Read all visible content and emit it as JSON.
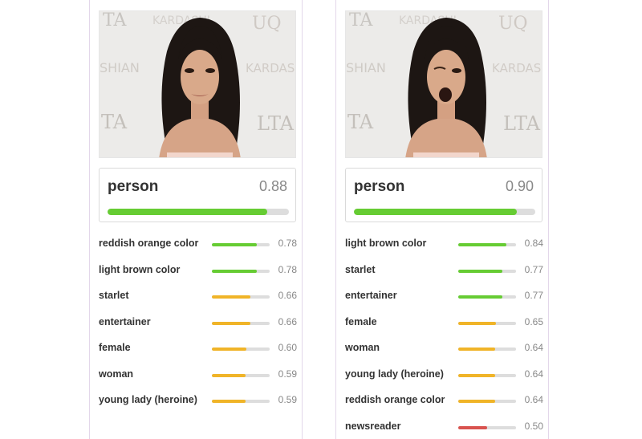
{
  "colors": {
    "high": "#66cc33",
    "mid": "#f0b428",
    "low": "#d9534f",
    "track": "#dddddd"
  },
  "panels": [
    {
      "top": {
        "label": "person",
        "score": "0.88",
        "value": 0.88
      },
      "concepts": [
        {
          "label": "reddish orange color",
          "score": "0.78",
          "value": 0.78,
          "level": "high"
        },
        {
          "label": "light brown color",
          "score": "0.78",
          "value": 0.78,
          "level": "high"
        },
        {
          "label": "starlet",
          "score": "0.66",
          "value": 0.66,
          "level": "mid"
        },
        {
          "label": "entertainer",
          "score": "0.66",
          "value": 0.66,
          "level": "mid"
        },
        {
          "label": "female",
          "score": "0.60",
          "value": 0.6,
          "level": "mid"
        },
        {
          "label": "woman",
          "score": "0.59",
          "value": 0.59,
          "level": "mid"
        },
        {
          "label": "young lady (heroine)",
          "score": "0.59",
          "value": 0.59,
          "level": "mid"
        }
      ]
    },
    {
      "top": {
        "label": "person",
        "score": "0.90",
        "value": 0.9
      },
      "concepts": [
        {
          "label": "light brown color",
          "score": "0.84",
          "value": 0.84,
          "level": "high"
        },
        {
          "label": "starlet",
          "score": "0.77",
          "value": 0.77,
          "level": "high"
        },
        {
          "label": "entertainer",
          "score": "0.77",
          "value": 0.77,
          "level": "high"
        },
        {
          "label": "female",
          "score": "0.65",
          "value": 0.65,
          "level": "mid"
        },
        {
          "label": "woman",
          "score": "0.64",
          "value": 0.64,
          "level": "mid"
        },
        {
          "label": "young lady (heroine)",
          "score": "0.64",
          "value": 0.64,
          "level": "mid"
        },
        {
          "label": "reddish orange color",
          "score": "0.64",
          "value": 0.64,
          "level": "mid"
        },
        {
          "label": "newsreader",
          "score": "0.50",
          "value": 0.5,
          "level": "low"
        }
      ]
    }
  ]
}
